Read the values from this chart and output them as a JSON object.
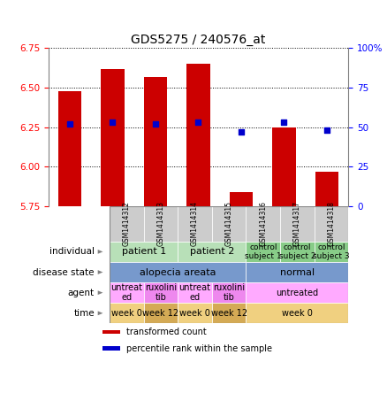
{
  "title": "GDS5275 / 240576_at",
  "samples": [
    "GSM1414312",
    "GSM1414313",
    "GSM1414314",
    "GSM1414315",
    "GSM1414316",
    "GSM1414317",
    "GSM1414318"
  ],
  "transformed_count": [
    6.48,
    6.62,
    6.57,
    6.65,
    5.84,
    6.25,
    5.97
  ],
  "percentile_rank": [
    52,
    53,
    52,
    53,
    47,
    53,
    48
  ],
  "ylim_left": [
    5.75,
    6.75
  ],
  "ylim_right": [
    0,
    100
  ],
  "yticks_left": [
    5.75,
    6.0,
    6.25,
    6.5,
    6.75
  ],
  "yticks_right": [
    0,
    25,
    50,
    75,
    100
  ],
  "bar_color": "#cc0000",
  "dot_color": "#0000cc",
  "bar_bottom": 5.75,
  "annotation_rows": [
    {
      "label": "individual",
      "cells": [
        {
          "text": "patient 1",
          "span": 2,
          "color": "#b8e0b8",
          "fontsize": 8
        },
        {
          "text": "patient 2",
          "span": 2,
          "color": "#b8e0b8",
          "fontsize": 8
        },
        {
          "text": "control\nsubject 1",
          "span": 1,
          "color": "#88cc88",
          "fontsize": 6.5
        },
        {
          "text": "control\nsubject 2",
          "span": 1,
          "color": "#88cc88",
          "fontsize": 6.5
        },
        {
          "text": "control\nsubject 3",
          "span": 1,
          "color": "#88cc88",
          "fontsize": 6.5
        }
      ]
    },
    {
      "label": "disease state",
      "cells": [
        {
          "text": "alopecia areata",
          "span": 4,
          "color": "#7799cc",
          "fontsize": 8
        },
        {
          "text": "normal",
          "span": 3,
          "color": "#7799cc",
          "fontsize": 8
        }
      ]
    },
    {
      "label": "agent",
      "cells": [
        {
          "text": "untreat\ned",
          "span": 1,
          "color": "#ffaaff",
          "fontsize": 7
        },
        {
          "text": "ruxolini\ntib",
          "span": 1,
          "color": "#ee88ee",
          "fontsize": 7
        },
        {
          "text": "untreat\ned",
          "span": 1,
          "color": "#ffaaff",
          "fontsize": 7
        },
        {
          "text": "ruxolini\ntib",
          "span": 1,
          "color": "#ee88ee",
          "fontsize": 7
        },
        {
          "text": "untreated",
          "span": 3,
          "color": "#ffaaff",
          "fontsize": 7
        }
      ]
    },
    {
      "label": "time",
      "cells": [
        {
          "text": "week 0",
          "span": 1,
          "color": "#f0d080",
          "fontsize": 7
        },
        {
          "text": "week 12",
          "span": 1,
          "color": "#d4aa55",
          "fontsize": 7
        },
        {
          "text": "week 0",
          "span": 1,
          "color": "#f0d080",
          "fontsize": 7
        },
        {
          "text": "week 12",
          "span": 1,
          "color": "#d4aa55",
          "fontsize": 7
        },
        {
          "text": "week 0",
          "span": 3,
          "color": "#f0d080",
          "fontsize": 7
        }
      ]
    }
  ],
  "legend": [
    {
      "color": "#cc0000",
      "label": "transformed count"
    },
    {
      "color": "#0000cc",
      "label": "percentile rank within the sample"
    }
  ],
  "sample_col_color": "#cccccc",
  "left_label_color": "#555555"
}
